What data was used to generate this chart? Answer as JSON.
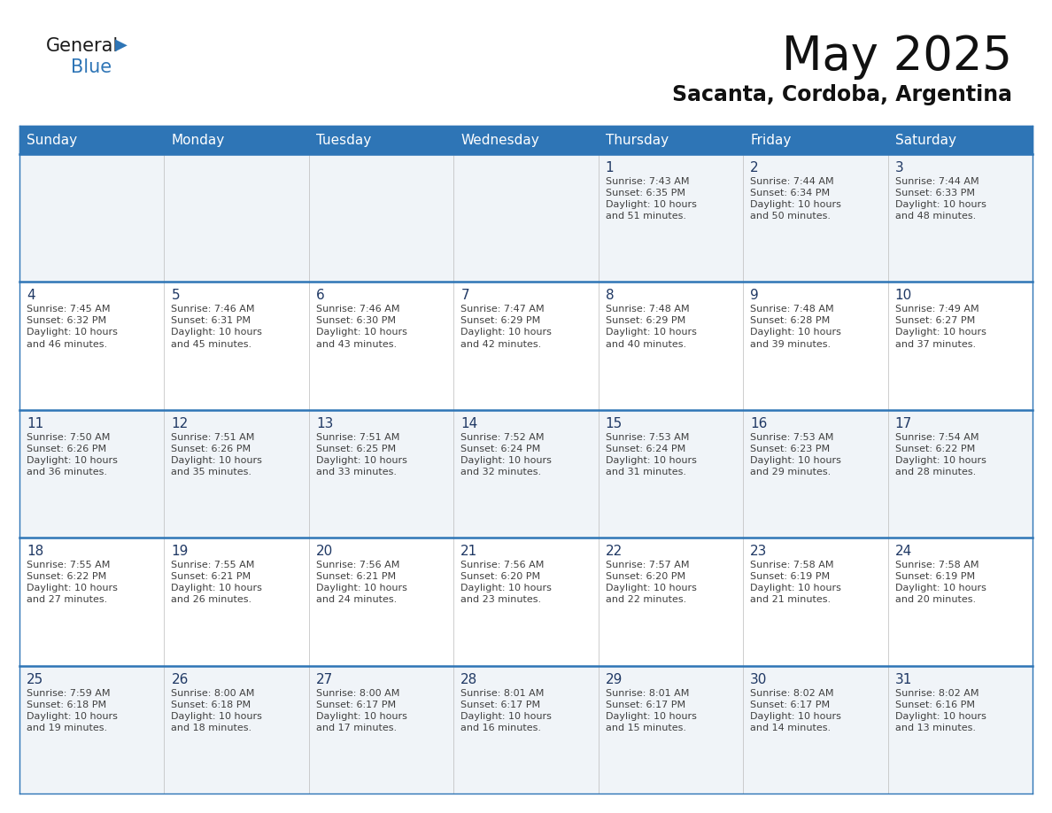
{
  "title": "May 2025",
  "subtitle": "Sacanta, Cordoba, Argentina",
  "header_bg": "#2E75B6",
  "header_text_color": "#FFFFFF",
  "days_of_week": [
    "Sunday",
    "Monday",
    "Tuesday",
    "Wednesday",
    "Thursday",
    "Friday",
    "Saturday"
  ],
  "cell_bg_row0": "#F0F4F8",
  "cell_bg_row1": "#FFFFFF",
  "cell_bg_row2": "#F0F4F8",
  "cell_bg_row3": "#FFFFFF",
  "cell_bg_row4": "#F0F4F8",
  "divider_color": "#2E75B6",
  "day_number_color": "#1F3864",
  "text_color": "#404040",
  "logo_general_color": "#1a1a1a",
  "logo_blue_color": "#2E75B6",
  "calendar": [
    [
      {
        "day": "",
        "info": ""
      },
      {
        "day": "",
        "info": ""
      },
      {
        "day": "",
        "info": ""
      },
      {
        "day": "",
        "info": ""
      },
      {
        "day": "1",
        "info": "Sunrise: 7:43 AM\nSunset: 6:35 PM\nDaylight: 10 hours\nand 51 minutes."
      },
      {
        "day": "2",
        "info": "Sunrise: 7:44 AM\nSunset: 6:34 PM\nDaylight: 10 hours\nand 50 minutes."
      },
      {
        "day": "3",
        "info": "Sunrise: 7:44 AM\nSunset: 6:33 PM\nDaylight: 10 hours\nand 48 minutes."
      }
    ],
    [
      {
        "day": "4",
        "info": "Sunrise: 7:45 AM\nSunset: 6:32 PM\nDaylight: 10 hours\nand 46 minutes."
      },
      {
        "day": "5",
        "info": "Sunrise: 7:46 AM\nSunset: 6:31 PM\nDaylight: 10 hours\nand 45 minutes."
      },
      {
        "day": "6",
        "info": "Sunrise: 7:46 AM\nSunset: 6:30 PM\nDaylight: 10 hours\nand 43 minutes."
      },
      {
        "day": "7",
        "info": "Sunrise: 7:47 AM\nSunset: 6:29 PM\nDaylight: 10 hours\nand 42 minutes."
      },
      {
        "day": "8",
        "info": "Sunrise: 7:48 AM\nSunset: 6:29 PM\nDaylight: 10 hours\nand 40 minutes."
      },
      {
        "day": "9",
        "info": "Sunrise: 7:48 AM\nSunset: 6:28 PM\nDaylight: 10 hours\nand 39 minutes."
      },
      {
        "day": "10",
        "info": "Sunrise: 7:49 AM\nSunset: 6:27 PM\nDaylight: 10 hours\nand 37 minutes."
      }
    ],
    [
      {
        "day": "11",
        "info": "Sunrise: 7:50 AM\nSunset: 6:26 PM\nDaylight: 10 hours\nand 36 minutes."
      },
      {
        "day": "12",
        "info": "Sunrise: 7:51 AM\nSunset: 6:26 PM\nDaylight: 10 hours\nand 35 minutes."
      },
      {
        "day": "13",
        "info": "Sunrise: 7:51 AM\nSunset: 6:25 PM\nDaylight: 10 hours\nand 33 minutes."
      },
      {
        "day": "14",
        "info": "Sunrise: 7:52 AM\nSunset: 6:24 PM\nDaylight: 10 hours\nand 32 minutes."
      },
      {
        "day": "15",
        "info": "Sunrise: 7:53 AM\nSunset: 6:24 PM\nDaylight: 10 hours\nand 31 minutes."
      },
      {
        "day": "16",
        "info": "Sunrise: 7:53 AM\nSunset: 6:23 PM\nDaylight: 10 hours\nand 29 minutes."
      },
      {
        "day": "17",
        "info": "Sunrise: 7:54 AM\nSunset: 6:22 PM\nDaylight: 10 hours\nand 28 minutes."
      }
    ],
    [
      {
        "day": "18",
        "info": "Sunrise: 7:55 AM\nSunset: 6:22 PM\nDaylight: 10 hours\nand 27 minutes."
      },
      {
        "day": "19",
        "info": "Sunrise: 7:55 AM\nSunset: 6:21 PM\nDaylight: 10 hours\nand 26 minutes."
      },
      {
        "day": "20",
        "info": "Sunrise: 7:56 AM\nSunset: 6:21 PM\nDaylight: 10 hours\nand 24 minutes."
      },
      {
        "day": "21",
        "info": "Sunrise: 7:56 AM\nSunset: 6:20 PM\nDaylight: 10 hours\nand 23 minutes."
      },
      {
        "day": "22",
        "info": "Sunrise: 7:57 AM\nSunset: 6:20 PM\nDaylight: 10 hours\nand 22 minutes."
      },
      {
        "day": "23",
        "info": "Sunrise: 7:58 AM\nSunset: 6:19 PM\nDaylight: 10 hours\nand 21 minutes."
      },
      {
        "day": "24",
        "info": "Sunrise: 7:58 AM\nSunset: 6:19 PM\nDaylight: 10 hours\nand 20 minutes."
      }
    ],
    [
      {
        "day": "25",
        "info": "Sunrise: 7:59 AM\nSunset: 6:18 PM\nDaylight: 10 hours\nand 19 minutes."
      },
      {
        "day": "26",
        "info": "Sunrise: 8:00 AM\nSunset: 6:18 PM\nDaylight: 10 hours\nand 18 minutes."
      },
      {
        "day": "27",
        "info": "Sunrise: 8:00 AM\nSunset: 6:17 PM\nDaylight: 10 hours\nand 17 minutes."
      },
      {
        "day": "28",
        "info": "Sunrise: 8:01 AM\nSunset: 6:17 PM\nDaylight: 10 hours\nand 16 minutes."
      },
      {
        "day": "29",
        "info": "Sunrise: 8:01 AM\nSunset: 6:17 PM\nDaylight: 10 hours\nand 15 minutes."
      },
      {
        "day": "30",
        "info": "Sunrise: 8:02 AM\nSunset: 6:17 PM\nDaylight: 10 hours\nand 14 minutes."
      },
      {
        "day": "31",
        "info": "Sunrise: 8:02 AM\nSunset: 6:16 PM\nDaylight: 10 hours\nand 13 minutes."
      }
    ]
  ]
}
